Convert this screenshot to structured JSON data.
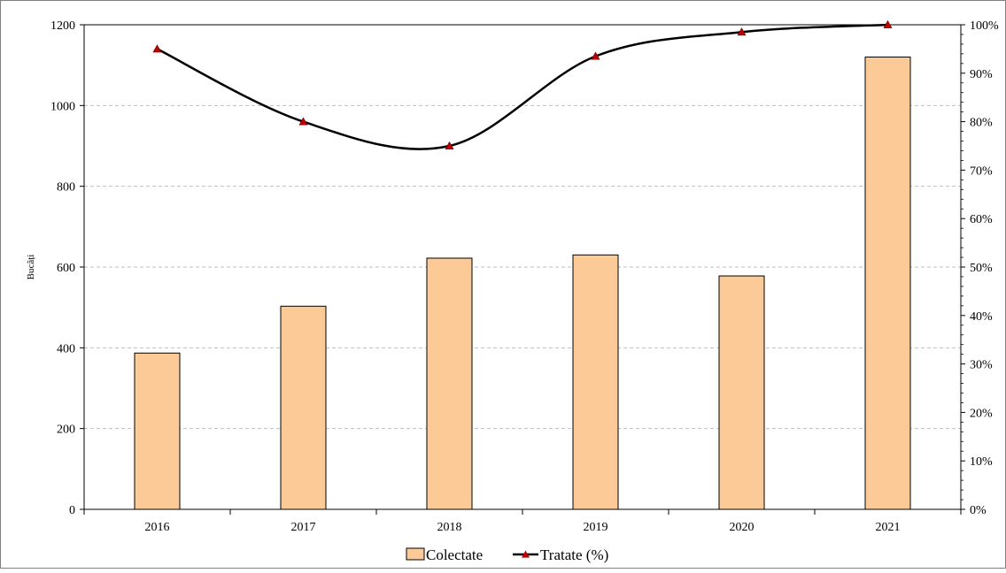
{
  "chart_data": {
    "type": "bar",
    "categories": [
      "2016",
      "2017",
      "2018",
      "2019",
      "2020",
      "2021"
    ],
    "series": [
      {
        "name": "Colectate",
        "type": "bar",
        "axis": "left",
        "values": [
          387,
          503,
          622,
          630,
          578,
          1120
        ]
      },
      {
        "name": "Tratate (%)",
        "type": "line",
        "axis": "right",
        "values": [
          95,
          80,
          75,
          93.5,
          98.5,
          100
        ]
      }
    ],
    "title": "",
    "xlabel": "",
    "ylabel": "Bucăți",
    "ylim": [
      0,
      1200
    ],
    "y_ticks": [
      "0",
      "200",
      "400",
      "600",
      "800",
      "1000",
      "1200"
    ],
    "y2lim": [
      0,
      100
    ],
    "y2_ticks": [
      "0%",
      "10%",
      "20%",
      "30%",
      "40%",
      "50%",
      "60%",
      "70%",
      "80%",
      "90%",
      "100%"
    ],
    "grid": true,
    "legend": "bottom",
    "colors": {
      "bar_fill": "#FBCA97",
      "bar_stroke": "#000000",
      "line": "#000000",
      "marker": "#C00000",
      "grid": "#BFBFBF"
    }
  }
}
